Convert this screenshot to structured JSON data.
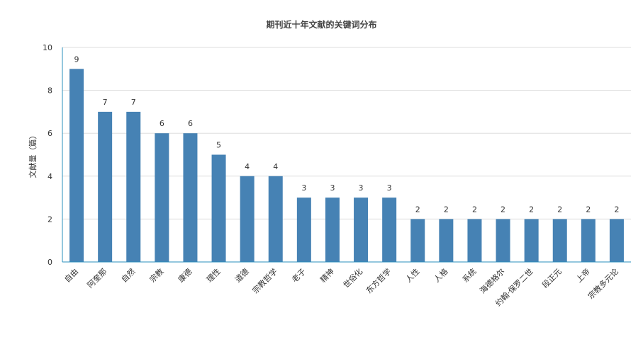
{
  "chart_data": {
    "type": "bar",
    "title": "期刊近十年文献的关键词分布",
    "xlabel": "",
    "ylabel": "文献量（篇）",
    "ylim": [
      0,
      10
    ],
    "yticks": [
      0,
      2,
      4,
      6,
      8,
      10
    ],
    "grid": true,
    "categories": [
      "自由",
      "阿奎那",
      "自然",
      "宗教",
      "康德",
      "理性",
      "道德",
      "宗教哲学",
      "老子",
      "精神",
      "世俗化",
      "东方哲学",
      "人性",
      "人格",
      "系统",
      "海德格尔",
      "约翰·保罗二世",
      "段正元",
      "上帝",
      "宗教多元论"
    ],
    "values": [
      9,
      7,
      7,
      6,
      6,
      5,
      4,
      4,
      3,
      3,
      3,
      3,
      2,
      2,
      2,
      2,
      2,
      2,
      2,
      2
    ],
    "bar_color": "#4682b4",
    "grid_color": "#dddddd",
    "axis_color": "#2a8fbd"
  }
}
